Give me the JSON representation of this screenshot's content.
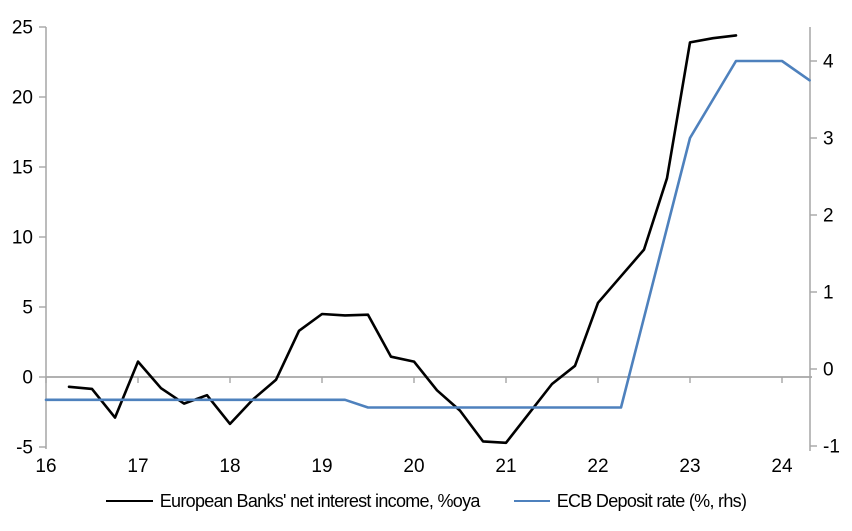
{
  "chart_data": {
    "type": "line",
    "title": "",
    "xlabel": "",
    "ylabel_left": "",
    "ylabel_right": "",
    "grid": false,
    "legend_position": "bottom",
    "zero_line_on_left_axis": true,
    "x_axis": {
      "tick_labels": [
        "16",
        "17",
        "18",
        "19",
        "20",
        "21",
        "22",
        "23",
        "24"
      ],
      "tick_values": [
        16,
        17,
        18,
        19,
        20,
        21,
        22,
        23,
        24
      ],
      "range": [
        16,
        24.33
      ]
    },
    "left_axis": {
      "tick_values": [
        25,
        20,
        15,
        10,
        5,
        0,
        -5
      ],
      "range": [
        -5,
        25
      ]
    },
    "right_axis": {
      "tick_values": [
        4,
        3,
        2,
        1,
        0,
        -1
      ],
      "range": [
        -1,
        4.43
      ]
    },
    "series": [
      {
        "name": "European Banks' net interest income, %oya",
        "axis": "left",
        "color": "#000000",
        "points": [
          [
            16.25,
            -0.7
          ],
          [
            16.5,
            -0.85
          ],
          [
            16.75,
            -2.9
          ],
          [
            17.0,
            1.1
          ],
          [
            17.25,
            -0.8
          ],
          [
            17.5,
            -1.9
          ],
          [
            17.75,
            -1.3
          ],
          [
            18.0,
            -3.35
          ],
          [
            18.25,
            -1.6
          ],
          [
            18.5,
            -0.2
          ],
          [
            18.75,
            3.3
          ],
          [
            19.0,
            4.5
          ],
          [
            19.25,
            4.4
          ],
          [
            19.5,
            4.45
          ],
          [
            19.75,
            1.45
          ],
          [
            20.0,
            1.1
          ],
          [
            20.25,
            -0.95
          ],
          [
            20.5,
            -2.4
          ],
          [
            20.75,
            -4.6
          ],
          [
            21.0,
            -4.7
          ],
          [
            21.25,
            -2.6
          ],
          [
            21.5,
            -0.5
          ],
          [
            21.75,
            0.8
          ],
          [
            22.0,
            5.3
          ],
          [
            22.25,
            7.2
          ],
          [
            22.5,
            9.1
          ],
          [
            22.75,
            14.2
          ],
          [
            23.0,
            23.9
          ],
          [
            23.25,
            24.2
          ],
          [
            23.5,
            24.4
          ]
        ]
      },
      {
        "name": "ECB Deposit rate (%, rhs)",
        "axis": "right",
        "color": "#4e81bd",
        "points": [
          [
            16.0,
            -0.4
          ],
          [
            19.25,
            -0.4
          ],
          [
            19.5,
            -0.5
          ],
          [
            22.25,
            -0.5
          ],
          [
            23.0,
            3.0
          ],
          [
            23.25,
            3.5
          ],
          [
            23.5,
            4.0
          ],
          [
            24.0,
            4.0
          ],
          [
            24.3,
            3.75
          ]
        ]
      }
    ],
    "colors": {
      "axis": "#a6a6a6",
      "zero_line": "#a6a6a6",
      "background": "#ffffff"
    }
  }
}
